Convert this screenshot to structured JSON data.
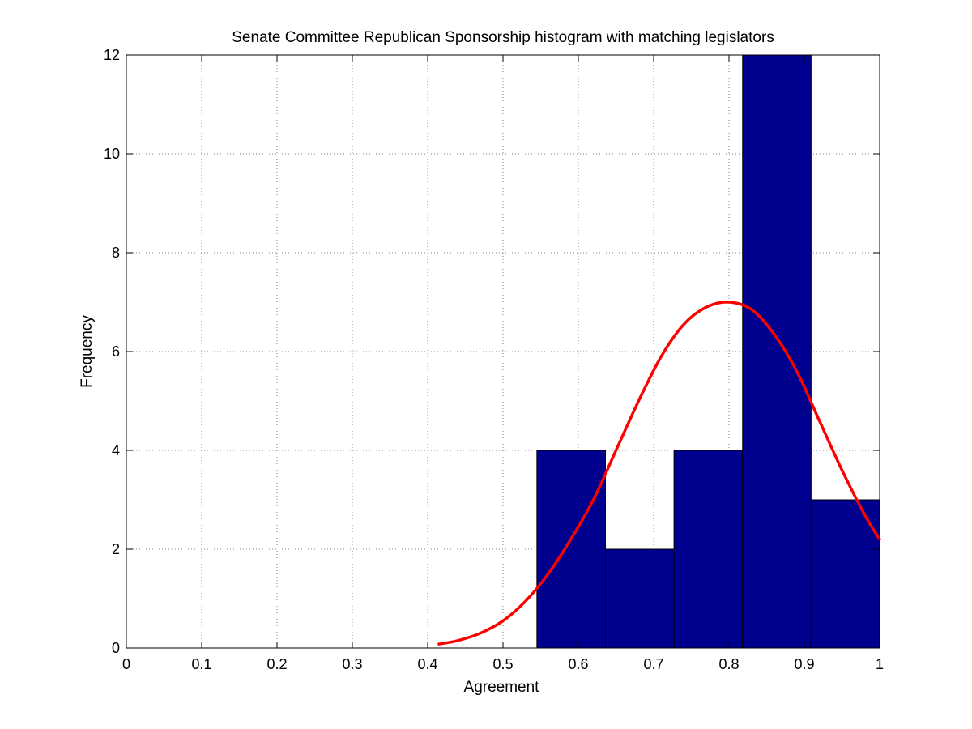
{
  "chart_data": {
    "type": "bar",
    "title": "Senate Committee Republican Sponsorship histogram with matching legislators",
    "xlabel": "Agreement",
    "ylabel": "Frequency",
    "xlim": [
      0,
      1
    ],
    "ylim": [
      0,
      12
    ],
    "x_ticks": [
      "0",
      "0.1",
      "0.2",
      "0.3",
      "0.4",
      "0.5",
      "0.6",
      "0.7",
      "0.8",
      "0.9",
      "1"
    ],
    "y_ticks": [
      "0",
      "2",
      "4",
      "6",
      "8",
      "10",
      "12"
    ],
    "grid": true,
    "bins": [
      {
        "start": 0.545,
        "end": 0.636,
        "count": 4
      },
      {
        "start": 0.636,
        "end": 0.727,
        "count": 2
      },
      {
        "start": 0.727,
        "end": 0.818,
        "count": 4
      },
      {
        "start": 0.818,
        "end": 0.909,
        "count": 12
      },
      {
        "start": 0.909,
        "end": 1.0,
        "count": 3
      }
    ],
    "series": [
      {
        "type": "line",
        "x": [
          0.415,
          0.44,
          0.47,
          0.5,
          0.53,
          0.56,
          0.59,
          0.62,
          0.65,
          0.68,
          0.71,
          0.74,
          0.77,
          0.8,
          0.83,
          0.86,
          0.89,
          0.92,
          0.95,
          0.98,
          1.0
        ],
        "y": [
          0.08,
          0.15,
          0.3,
          0.55,
          0.95,
          1.5,
          2.2,
          3.0,
          4.0,
          5.0,
          5.9,
          6.55,
          6.9,
          7.0,
          6.85,
          6.35,
          5.6,
          4.6,
          3.6,
          2.7,
          2.2
        ]
      }
    ],
    "colors": {
      "bar_fill": "#00008f",
      "bar_edge": "#000000",
      "curve": "#ff0000",
      "grid": "#7f7f7f",
      "axis": "#000000"
    }
  }
}
